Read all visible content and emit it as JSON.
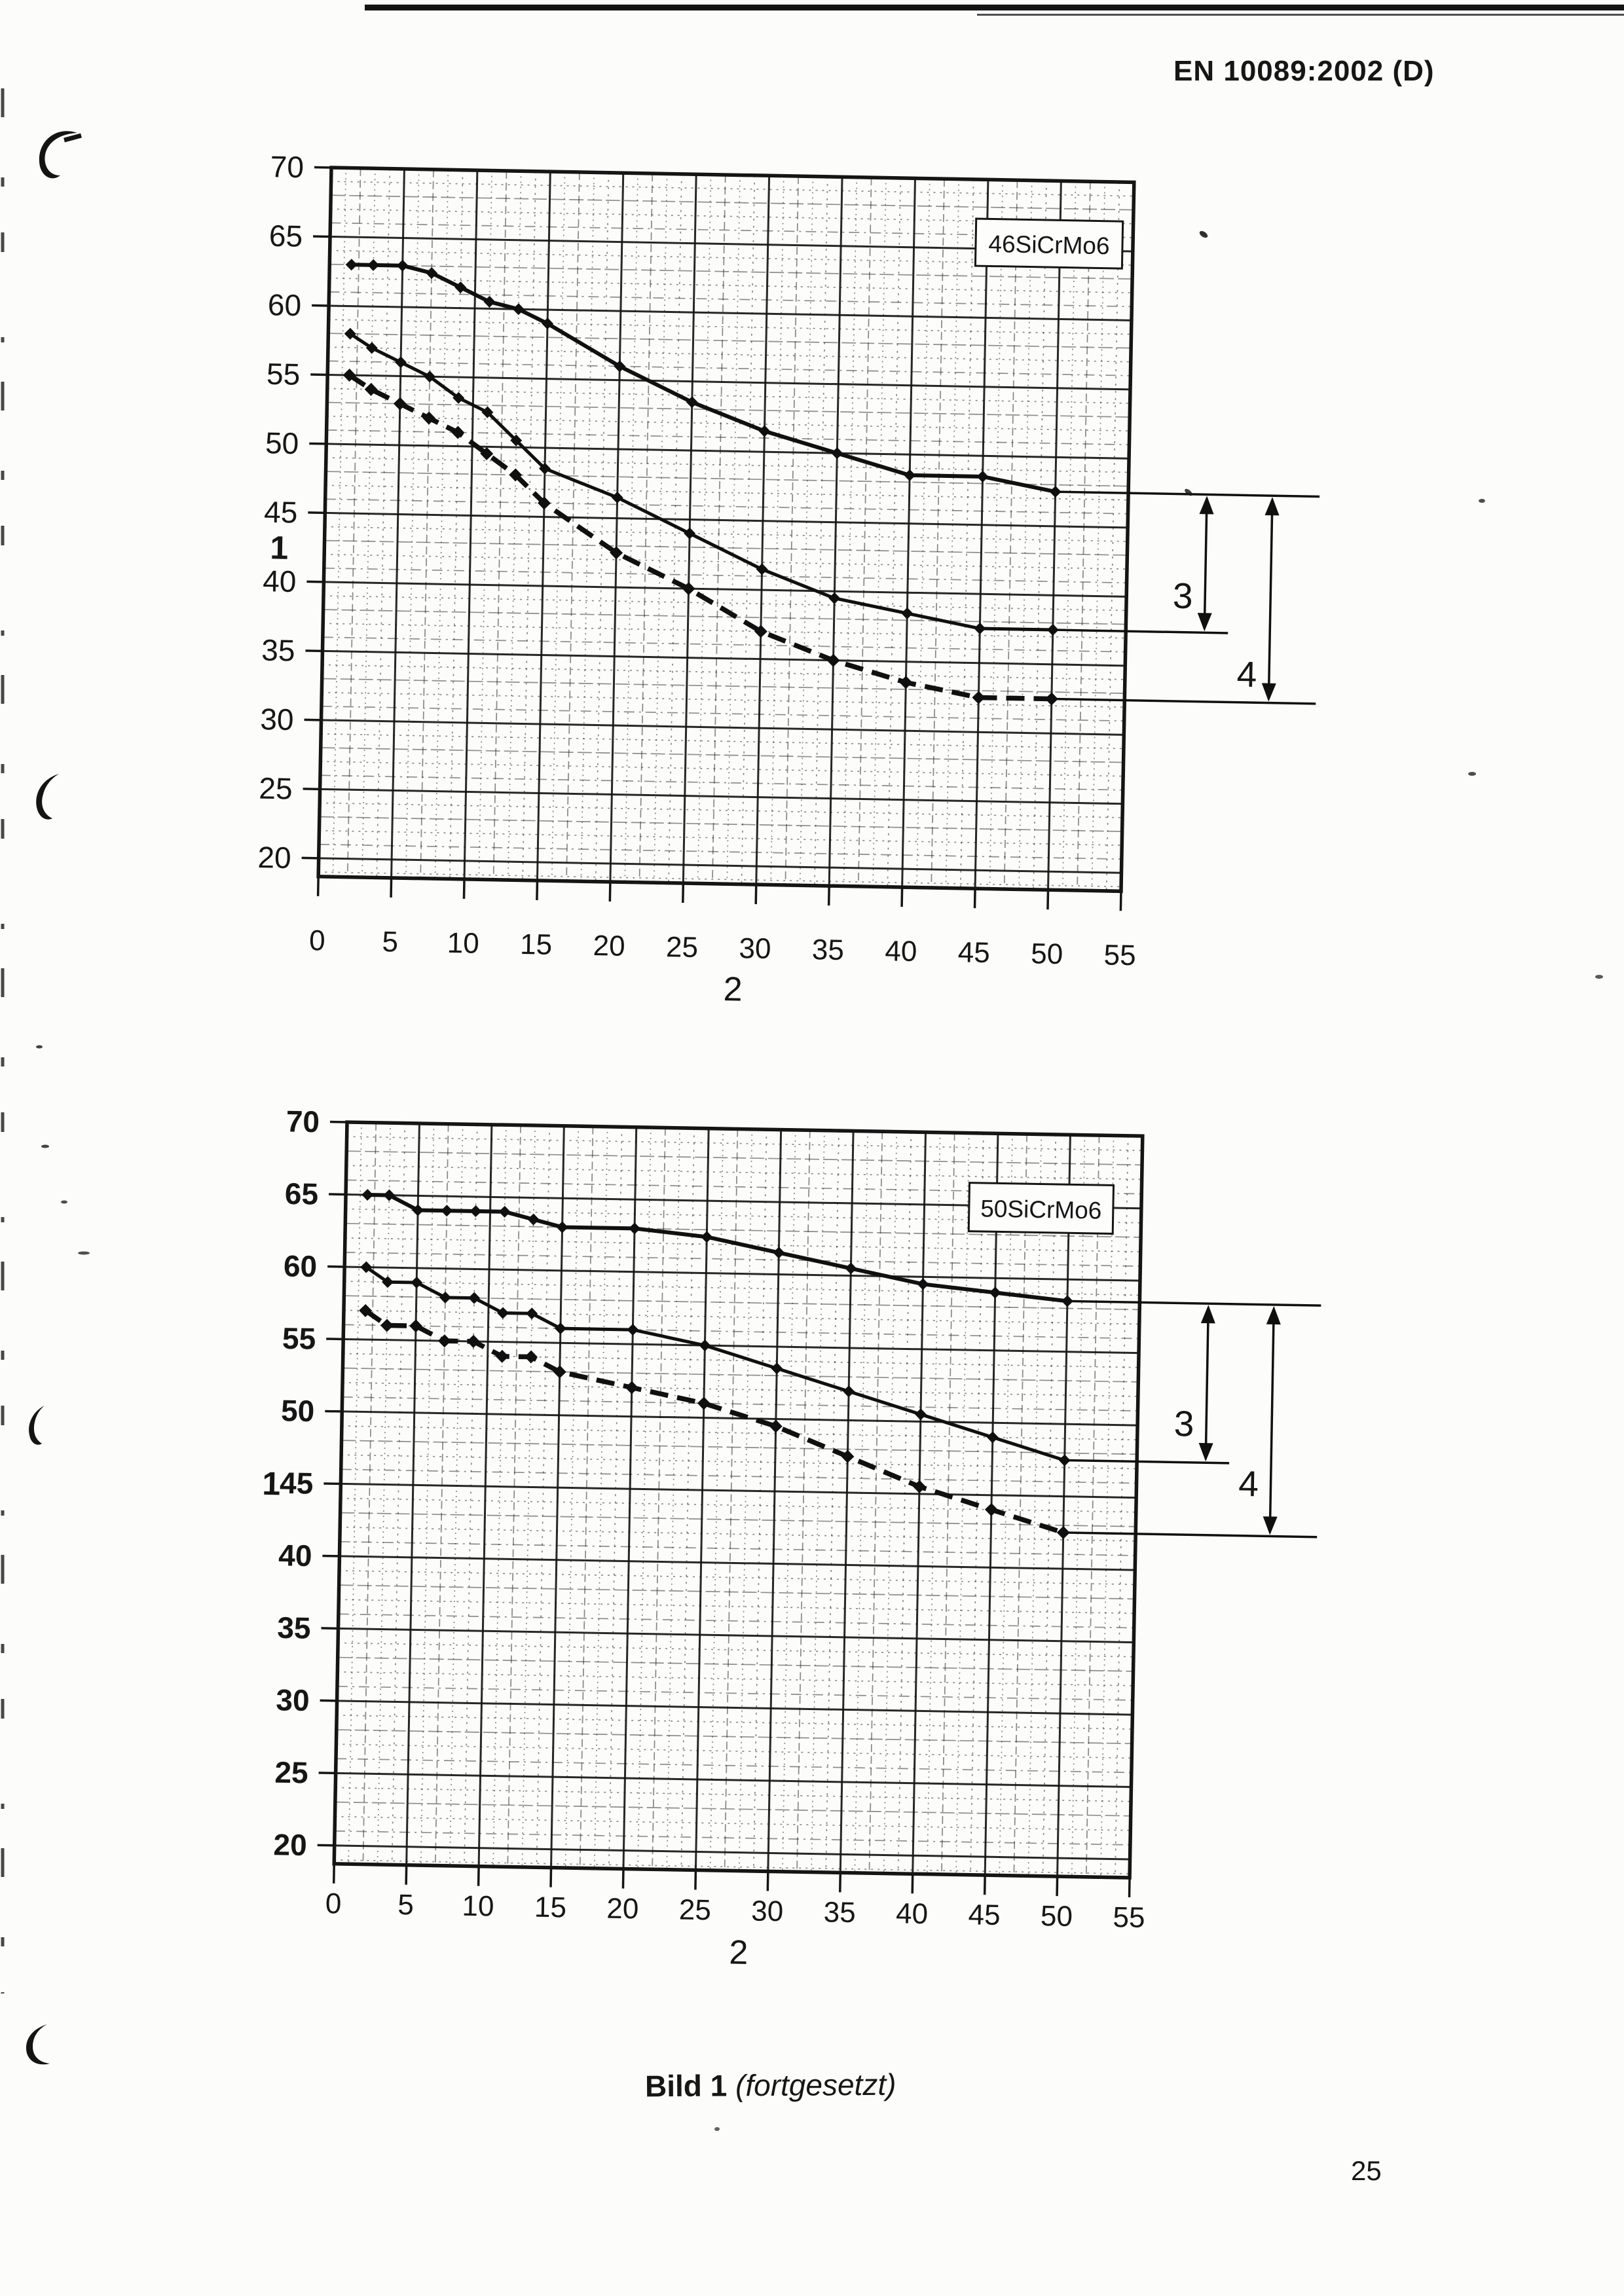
{
  "page": {
    "header_title": "EN 10089:2002 (D)",
    "caption": {
      "bold": "Bild 1",
      "italic": " (fortgesetzt)"
    },
    "page_number": "25"
  },
  "ink_color": "#151515",
  "paper_color": "#fcfcfa",
  "chart_data": [
    {
      "type": "line",
      "label": "46SiCrMo6",
      "x_axis": {
        "label": "2",
        "range": [
          0,
          55
        ],
        "ticks": [
          0,
          5,
          10,
          15,
          20,
          25,
          30,
          35,
          40,
          45,
          50,
          55
        ]
      },
      "y_axis": {
        "label": "1",
        "range": [
          20,
          70
        ],
        "ticks": [
          70,
          65,
          60,
          55,
          50,
          45,
          40,
          35,
          30,
          25,
          20
        ]
      },
      "grid": "minor every 1 unit, major every 5 units",
      "x": [
        1.5,
        3,
        5,
        7,
        9,
        11,
        13,
        15,
        20,
        25,
        30,
        35,
        40,
        45,
        50
      ],
      "series": [
        {
          "name": "upper",
          "style": "solid",
          "marker": "diamond",
          "values": [
            63,
            63,
            63,
            62.5,
            61.5,
            60.5,
            60,
            59,
            56,
            53.5,
            51.5,
            50,
            48.5,
            48.5,
            47.5
          ]
        },
        {
          "name": "middle",
          "style": "solid",
          "marker": "diamond",
          "values": [
            58,
            57,
            56,
            55,
            53.5,
            52.5,
            50.5,
            48.5,
            46.5,
            44,
            41.5,
            39.5,
            38.5,
            37.5,
            37.5
          ]
        },
        {
          "name": "lower",
          "style": "dashed",
          "marker": "diamond",
          "values": [
            55,
            54,
            53,
            52,
            51,
            49.5,
            48,
            46,
            42.5,
            40,
            37,
            35,
            33.5,
            32.5,
            32.5
          ]
        }
      ],
      "annotations": {
        "arrows": [
          {
            "label": "3",
            "from_level": 47.5,
            "to_level": 37.5
          },
          {
            "label": "4",
            "from_level": 47.5,
            "to_level": 32.5
          }
        ]
      }
    },
    {
      "type": "line",
      "label": "50SiCrMo6",
      "x_axis": {
        "label": "2",
        "range": [
          0,
          55
        ],
        "ticks": [
          0,
          5,
          10,
          15,
          20,
          25,
          30,
          35,
          40,
          45,
          50,
          55
        ]
      },
      "y_axis": {
        "label": "1",
        "range": [
          20,
          70
        ],
        "ticks": [
          70,
          65,
          60,
          55,
          50,
          45,
          40,
          35,
          30,
          25,
          20
        ]
      },
      "grid": "minor every 1 unit, major every 5 units",
      "x": [
        1.5,
        3,
        5,
        7,
        9,
        11,
        13,
        15,
        20,
        25,
        30,
        35,
        40,
        45,
        50
      ],
      "series": [
        {
          "name": "upper",
          "style": "solid",
          "marker": "diamond",
          "values": [
            65,
            65,
            64,
            64,
            64,
            64,
            63.5,
            63,
            63,
            62.5,
            61.5,
            60.5,
            59.5,
            59,
            58.5
          ]
        },
        {
          "name": "middle",
          "style": "solid",
          "marker": "diamond",
          "values": [
            60,
            59,
            59,
            58,
            58,
            57,
            57,
            56,
            56,
            55,
            53.5,
            52,
            50.5,
            49,
            47.5
          ]
        },
        {
          "name": "lower",
          "style": "dashed",
          "marker": "diamond",
          "values": [
            57,
            56,
            56,
            55,
            55,
            54,
            54,
            53,
            52,
            51,
            49.5,
            47.5,
            45.5,
            44,
            42.5
          ]
        }
      ],
      "annotations": {
        "arrows": [
          {
            "label": "3",
            "from_level": 58.5,
            "to_level": 47.5
          },
          {
            "label": "4",
            "from_level": 58.5,
            "to_level": 42.5
          }
        ]
      }
    }
  ]
}
